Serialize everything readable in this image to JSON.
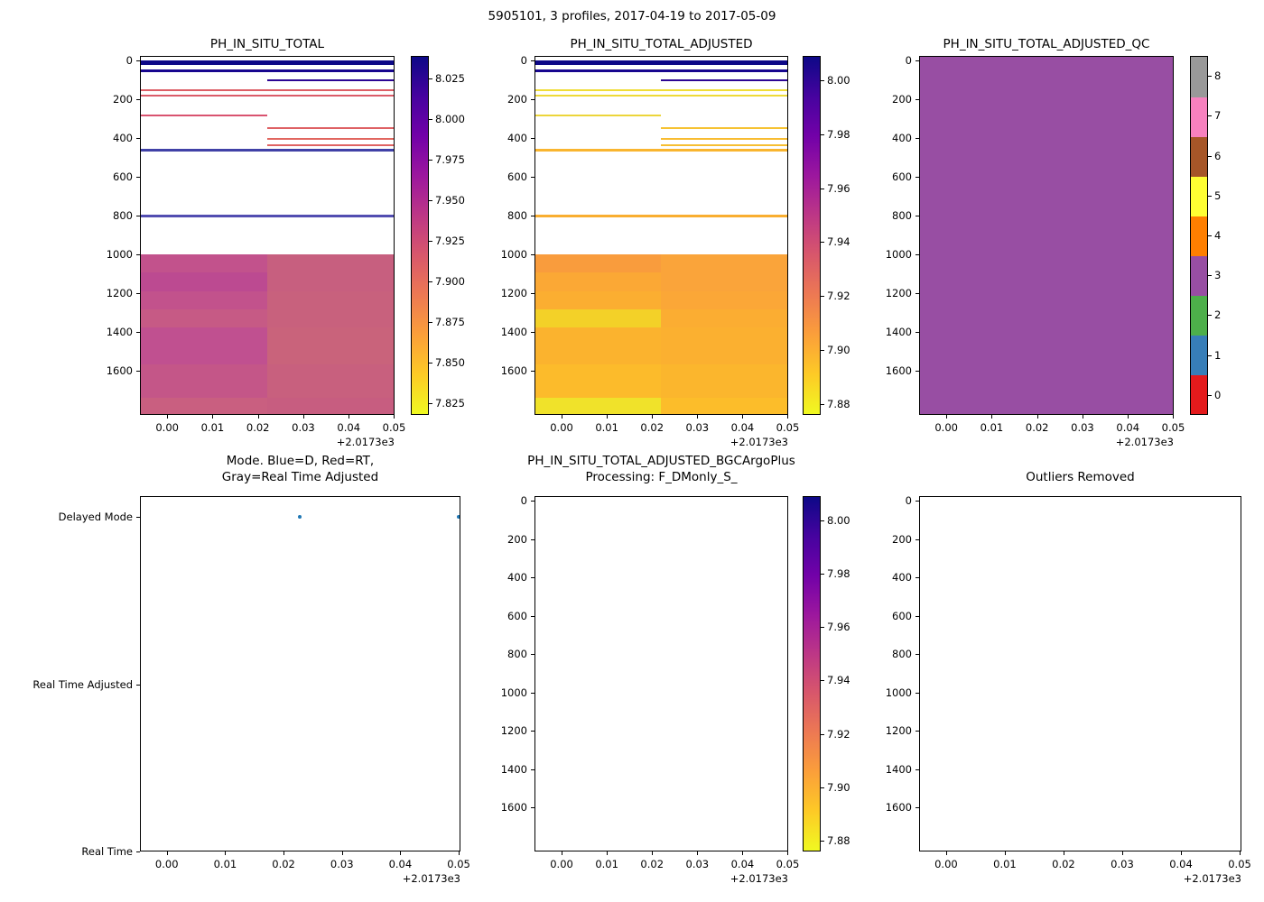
{
  "figure": {
    "title": "5905101, 3 profiles, 2017-04-19 to 2017-05-09"
  },
  "chart_data": [
    {
      "id": "ph_in_situ_total",
      "type": "heatmap",
      "title": "PH_IN_SITU_TOTAL",
      "xlim": [
        -0.006,
        0.0501
      ],
      "ylim": [
        -25,
        1830
      ],
      "y_dir": "down",
      "x_ticks": [
        0,
        0.01,
        0.02,
        0.03,
        0.04,
        0.05
      ],
      "x_offset_text": "+2.0173e3",
      "y_ticks": [
        0,
        200,
        400,
        600,
        800,
        1000,
        1200,
        1400,
        1600
      ],
      "column_split_x": 0.022,
      "colorbar": {
        "colormap": "plasma_r",
        "vmin": 7.818,
        "vmax": 8.039,
        "tick_labels": [
          "7.825",
          "7.850",
          "7.875",
          "7.900",
          "7.925",
          "7.950",
          "7.975",
          "8.000",
          "8.025"
        ],
        "gradient_bottom_to_top": [
          "#f0f921",
          "#fdca26",
          "#fb9f3a",
          "#ed7953",
          "#d8576b",
          "#bd3786",
          "#9c179e",
          "#7201a8",
          "#46039f",
          "#0d0887"
        ]
      },
      "stripes": [
        {
          "d0": 0,
          "d1": 22,
          "span": "full",
          "color": "#0d0887",
          "ph": 8.035
        },
        {
          "d0": 45,
          "d1": 60,
          "span": "full",
          "color": "#17068f",
          "ph": 8.025
        },
        {
          "d0": 96,
          "d1": 107,
          "span": "right",
          "color": "#2c0594",
          "ph": 8.01
        },
        {
          "d0": 147,
          "d1": 157,
          "span": "full",
          "color": "#dd5e66",
          "ph": 7.9
        },
        {
          "d0": 177,
          "d1": 187,
          "span": "full",
          "color": "#db5c69",
          "ph": 7.902
        },
        {
          "d0": 278,
          "d1": 288,
          "span": "left",
          "color": "#d9536f",
          "ph": 7.908
        },
        {
          "d0": 342,
          "d1": 352,
          "span": "right",
          "color": "#de6164",
          "ph": 7.898
        },
        {
          "d0": 400,
          "d1": 410,
          "span": "right",
          "color": "#e16760",
          "ph": 7.894
        },
        {
          "d0": 433,
          "d1": 443,
          "span": "right",
          "color": "#df6363",
          "ph": 7.897
        },
        {
          "d0": 456,
          "d1": 468,
          "span": "full",
          "color": "#4041a7",
          "ph": 7.985
        },
        {
          "d0": 797,
          "d1": 807,
          "span": "full",
          "color": "#524db1",
          "ph": 7.978
        }
      ],
      "blocks": [
        {
          "d0": 1000,
          "d1": 1095,
          "left_color": "#c2528c",
          "right_color": "#c75f7f",
          "left_ph": 7.928,
          "right_ph": 7.918
        },
        {
          "d0": 1095,
          "d1": 1190,
          "left_color": "#bc4a91",
          "right_color": "#c75f7f",
          "left_ph": 7.933,
          "right_ph": 7.918
        },
        {
          "d0": 1190,
          "d1": 1285,
          "left_color": "#c2528c",
          "right_color": "#c8617d",
          "left_ph": 7.928,
          "right_ph": 7.917
        },
        {
          "d0": 1285,
          "d1": 1380,
          "left_color": "#c65a85",
          "right_color": "#c8617d",
          "left_ph": 7.922,
          "right_ph": 7.917
        },
        {
          "d0": 1380,
          "d1": 1570,
          "left_color": "#c05090",
          "right_color": "#c9637b",
          "left_ph": 7.93,
          "right_ph": 7.916
        },
        {
          "d0": 1570,
          "d1": 1740,
          "left_color": "#c45688",
          "right_color": "#c8607e",
          "left_ph": 7.925,
          "right_ph": 7.917
        },
        {
          "d0": 1740,
          "d1": 1830,
          "left_color": "#c95f80",
          "right_color": "#c75d80",
          "left_ph": 7.918,
          "right_ph": 7.918
        }
      ]
    },
    {
      "id": "ph_in_situ_total_adjusted",
      "type": "heatmap",
      "title": "PH_IN_SITU_TOTAL_ADJUSTED",
      "xlim": [
        -0.006,
        0.0501
      ],
      "ylim": [
        -25,
        1830
      ],
      "y_dir": "down",
      "x_ticks": [
        0,
        0.01,
        0.02,
        0.03,
        0.04,
        0.05
      ],
      "x_offset_text": "+2.0173e3",
      "y_ticks": [
        0,
        200,
        400,
        600,
        800,
        1000,
        1200,
        1400,
        1600
      ],
      "column_split_x": 0.022,
      "colorbar": {
        "colormap": "plasma_r",
        "vmin": 7.876,
        "vmax": 8.009,
        "tick_labels": [
          "7.88",
          "7.90",
          "7.92",
          "7.94",
          "7.96",
          "7.98",
          "8.00"
        ],
        "gradient_bottom_to_top": [
          "#f0f921",
          "#fdca26",
          "#fb9f3a",
          "#ed7953",
          "#d8576b",
          "#bd3786",
          "#9c179e",
          "#7201a8",
          "#46039f",
          "#0d0887"
        ]
      },
      "stripes": [
        {
          "d0": 0,
          "d1": 22,
          "span": "full",
          "color": "#0d0887",
          "ph": 8.005
        },
        {
          "d0": 45,
          "d1": 60,
          "span": "full",
          "color": "#17068f",
          "ph": 8.0
        },
        {
          "d0": 96,
          "d1": 107,
          "span": "right",
          "color": "#2c0594",
          "ph": 7.99
        },
        {
          "d0": 147,
          "d1": 157,
          "span": "full",
          "color": "#f0dd37",
          "ph": 7.883
        },
        {
          "d0": 177,
          "d1": 187,
          "span": "full",
          "color": "#eedb39",
          "ph": 7.884
        },
        {
          "d0": 278,
          "d1": 288,
          "span": "left",
          "color": "#ecd53a",
          "ph": 7.885
        },
        {
          "d0": 342,
          "d1": 352,
          "span": "right",
          "color": "#f6c232",
          "ph": 7.889
        },
        {
          "d0": 400,
          "d1": 410,
          "span": "right",
          "color": "#f8bc31",
          "ph": 7.891
        },
        {
          "d0": 433,
          "d1": 443,
          "span": "right",
          "color": "#f7bf31",
          "ph": 7.89
        },
        {
          "d0": 456,
          "d1": 468,
          "span": "full",
          "color": "#f9b52f",
          "ph": 7.893
        },
        {
          "d0": 797,
          "d1": 807,
          "span": "full",
          "color": "#f9ae30",
          "ph": 7.896
        }
      ],
      "blocks": [
        {
          "d0": 1000,
          "d1": 1095,
          "left_color": "#f99c3d",
          "right_color": "#faa43a",
          "left_ph": 7.899,
          "right_ph": 7.898
        },
        {
          "d0": 1095,
          "d1": 1190,
          "left_color": "#fba835",
          "right_color": "#faa43a",
          "left_ph": 7.897,
          "right_ph": 7.898
        },
        {
          "d0": 1190,
          "d1": 1285,
          "left_color": "#fbae31",
          "right_color": "#fba737",
          "left_ph": 7.896,
          "right_ph": 7.897
        },
        {
          "d0": 1285,
          "d1": 1380,
          "left_color": "#f3d128",
          "right_color": "#fbad32",
          "left_ph": 7.886,
          "right_ph": 7.896
        },
        {
          "d0": 1380,
          "d1": 1570,
          "left_color": "#fbb32e",
          "right_color": "#fbb030",
          "left_ph": 7.895,
          "right_ph": 7.895
        },
        {
          "d0": 1570,
          "d1": 1740,
          "left_color": "#fcbb2b",
          "right_color": "#fbb62d",
          "left_ph": 7.893,
          "right_ph": 7.894
        },
        {
          "d0": 1740,
          "d1": 1830,
          "left_color": "#f0e22a",
          "right_color": "#fcbd2a",
          "left_ph": 7.88,
          "right_ph": 7.892
        }
      ]
    },
    {
      "id": "ph_in_situ_total_adjusted_qc",
      "type": "heatmap",
      "title": "PH_IN_SITU_TOTAL_ADJUSTED_QC",
      "xlim": [
        -0.006,
        0.0501
      ],
      "ylim": [
        -25,
        1830
      ],
      "y_dir": "down",
      "x_ticks": [
        0,
        0.01,
        0.02,
        0.03,
        0.04,
        0.05
      ],
      "x_offset_text": "+2.0173e3",
      "y_ticks": [
        0,
        200,
        400,
        600,
        800,
        1000,
        1200,
        1400,
        1600
      ],
      "fill": {
        "color": "#984ea3",
        "qc_value": 3
      },
      "colorbar": {
        "type": "discrete",
        "tick_labels": [
          "0",
          "1",
          "2",
          "3",
          "4",
          "5",
          "6",
          "7",
          "8"
        ],
        "segments_bottom_to_top": [
          "#e41a1c",
          "#377eb8",
          "#4daf4a",
          "#984ea3",
          "#ff7f00",
          "#ffff33",
          "#a65628",
          "#f781bf",
          "#999999"
        ]
      }
    },
    {
      "id": "mode",
      "type": "scatter",
      "title": "Mode. Blue=D, Red=RT,\nGray=Real Time Adjusted",
      "xlim": [
        -0.0046,
        0.0503
      ],
      "ylim": [
        0,
        2.124
      ],
      "y_dir": "up",
      "x_ticks": [
        0,
        0.01,
        0.02,
        0.03,
        0.04,
        0.05
      ],
      "x_offset_text": "+2.0173e3",
      "y_categories": [
        {
          "label": "Delayed Mode",
          "value": 2
        },
        {
          "label": "Real Time Adjusted",
          "value": 1
        },
        {
          "label": "Real Time",
          "value": 0
        }
      ],
      "points": [
        {
          "x": 0.0228,
          "y": 2,
          "color": "#1f77b4",
          "mode": "Delayed Mode"
        },
        {
          "x": 0.05,
          "y": 2,
          "color": "#1f77b4",
          "mode": "Delayed Mode"
        }
      ]
    },
    {
      "id": "bgc_argo_plus_processing",
      "type": "heatmap",
      "title": "PH_IN_SITU_TOTAL_ADJUSTED_BGCArgoPlus\nProcessing: F_DMonly_S_",
      "xlim": [
        -0.006,
        0.0501
      ],
      "ylim": [
        -25,
        1830
      ],
      "y_dir": "down",
      "x_ticks": [
        0,
        0.01,
        0.02,
        0.03,
        0.04,
        0.05
      ],
      "x_offset_text": "+2.0173e3",
      "y_ticks": [
        0,
        200,
        400,
        600,
        800,
        1000,
        1200,
        1400,
        1600
      ],
      "stripes": [],
      "blocks": [],
      "colorbar": {
        "colormap": "plasma_r",
        "vmin": 7.876,
        "vmax": 8.009,
        "tick_labels": [
          "7.88",
          "7.90",
          "7.92",
          "7.94",
          "7.96",
          "7.98",
          "8.00"
        ],
        "gradient_bottom_to_top": [
          "#f0f921",
          "#fdca26",
          "#fb9f3a",
          "#ed7953",
          "#d8576b",
          "#bd3786",
          "#9c179e",
          "#7201a8",
          "#46039f",
          "#0d0887"
        ]
      }
    },
    {
      "id": "outliers_removed",
      "type": "heatmap",
      "title": "Outliers Removed",
      "xlim": [
        -0.0046,
        0.0503
      ],
      "ylim": [
        -25,
        1830
      ],
      "y_dir": "down",
      "x_ticks": [
        0,
        0.01,
        0.02,
        0.03,
        0.04,
        0.05
      ],
      "x_offset_text": "+2.0173e3",
      "y_ticks": [
        0,
        200,
        400,
        600,
        800,
        1000,
        1200,
        1400,
        1600
      ],
      "stripes": [],
      "blocks": []
    }
  ]
}
